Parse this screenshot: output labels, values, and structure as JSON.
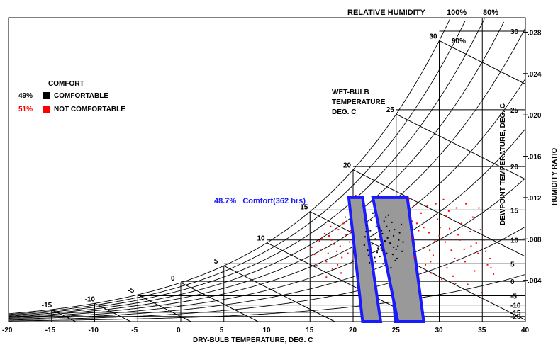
{
  "chart_data": {
    "type": "scatter",
    "chart_kind": "psychrometric",
    "header": {
      "title": "RELATIVE HUMIDITY",
      "rh_labels": [
        "100%",
        "80%"
      ],
      "rh_90_label": "90%"
    },
    "xlabel": "DRY-BULB TEMPERATURE, DEG. C",
    "xlim": [
      -20,
      40
    ],
    "x_ticks": [
      -20,
      -15,
      -10,
      -5,
      0,
      5,
      10,
      15,
      20,
      25,
      30,
      35,
      40
    ],
    "ylabel_right": "HUMIDITY RATIO",
    "ylim": [
      0,
      0.0294
    ],
    "humidity_ratio_ticks": [
      ".004",
      ".008",
      ".012",
      ".016",
      ".020",
      ".024",
      ".028"
    ],
    "dewpoint_label": "DEWPOINT TEMPERATURE, DEG. C",
    "dewpoint_ticks": [
      {
        "label": "30",
        "w": 0.0281
      },
      {
        "label": "25",
        "w": 0.0205
      },
      {
        "label": "20",
        "w": 0.015
      },
      {
        "label": "15",
        "w": 0.0108
      },
      {
        "label": "10",
        "w": 0.0079
      },
      {
        "label": "5",
        "w": 0.0056
      },
      {
        "label": "0",
        "w": 0.0039
      },
      {
        "label": "-5",
        "w": 0.0025
      },
      {
        "label": "-10",
        "w": 0.0016
      },
      {
        "label": "-15",
        "w": 0.0009
      },
      {
        "label": "-20",
        "w": 0.0005
      }
    ],
    "wet_bulb_title": [
      "WET-BULB",
      "TEMPERATURE",
      "DEG. C"
    ],
    "wet_bulb_labels": [
      "-15",
      "-10",
      "-5",
      "0",
      "5",
      "10",
      "15",
      "20",
      "25",
      "30"
    ],
    "rh_curves": [
      1.0,
      0.9,
      0.8,
      0.7,
      0.6,
      0.5,
      0.4,
      0.3,
      0.2,
      0.1
    ],
    "legend": {
      "title": "COMFORT",
      "placement": "top-left",
      "entries": [
        {
          "pct": "49%",
          "label": "COMFORTABLE",
          "color": "#000000"
        },
        {
          "pct": "51%",
          "label": "NOT COMFORTABLE",
          "color": "#ff0000"
        }
      ]
    },
    "comfort_annotation": "48.7%   Comfort(362 hrs)",
    "comfort_zones": [
      [
        [
          19.5,
          0.012
        ],
        [
          21.1,
          0.012
        ],
        [
          23.2,
          0
        ],
        [
          21.1,
          0
        ]
      ],
      [
        [
          23.8,
          0.012
        ],
        [
          25.0,
          0.012
        ],
        [
          25.9,
          0
        ],
        [
          24.9,
          0
        ]
      ],
      [
        [
          22.3,
          0.012
        ],
        [
          26.3,
          0.012
        ],
        [
          28.2,
          0
        ],
        [
          25.2,
          0
        ]
      ]
    ],
    "comfort_zone_fill": "#999999",
    "comfort_zone_stroke": "#1a1aff",
    "series": [
      {
        "name": "COMFORTABLE",
        "color": "#000000",
        "points": [
          [
            22.1,
            0.0098
          ],
          [
            23.4,
            0.0085
          ],
          [
            24.7,
            0.0072
          ],
          [
            21.8,
            0.0064
          ],
          [
            23.0,
            0.0091
          ],
          [
            25.3,
            0.0079
          ],
          [
            22.6,
            0.0058
          ],
          [
            24.1,
            0.0103
          ],
          [
            21.5,
            0.0087
          ],
          [
            23.9,
            0.0066
          ],
          [
            25.6,
            0.0094
          ],
          [
            22.9,
            0.0071
          ],
          [
            24.4,
            0.0052
          ],
          [
            21.9,
            0.0079
          ],
          [
            23.6,
            0.0097
          ],
          [
            25.1,
            0.0061
          ],
          [
            22.4,
            0.0084
          ],
          [
            24.8,
            0.0089
          ],
          [
            23.2,
            0.0074
          ],
          [
            21.7,
            0.0069
          ],
          [
            24.0,
            0.0081
          ],
          [
            25.8,
            0.0077
          ],
          [
            22.7,
            0.0092
          ],
          [
            23.5,
            0.0056
          ],
          [
            24.6,
            0.0065
          ],
          [
            22.2,
            0.0075
          ],
          [
            25.4,
            0.0086
          ],
          [
            23.8,
            0.0101
          ],
          [
            21.4,
            0.0082
          ],
          [
            24.9,
            0.0059
          ],
          [
            22.8,
            0.0067
          ],
          [
            23.3,
            0.0088
          ],
          [
            25.0,
            0.007
          ],
          [
            21.6,
            0.0093
          ],
          [
            24.3,
            0.0076
          ],
          [
            22.5,
            0.0062
          ],
          [
            23.7,
            0.0078
          ],
          [
            25.7,
            0.0068
          ],
          [
            22.0,
            0.0088
          ],
          [
            24.5,
            0.0096
          ],
          [
            23.1,
            0.0063
          ],
          [
            21.3,
            0.0074
          ],
          [
            24.2,
            0.0088
          ],
          [
            22.3,
            0.0105
          ],
          [
            25.2,
            0.0073
          ],
          [
            23.4,
            0.0069
          ],
          [
            24.7,
            0.0083
          ],
          [
            22.6,
            0.008
          ],
          [
            23.9,
            0.0092
          ],
          [
            21.9,
            0.0057
          ]
        ]
      },
      {
        "name": "NOT COMFORTABLE",
        "color": "#ff0000",
        "points": [
          [
            15.2,
            0.0072
          ],
          [
            16.4,
            0.0081
          ],
          [
            17.1,
            0.0066
          ],
          [
            18.3,
            0.0089
          ],
          [
            16.9,
            0.0058
          ],
          [
            17.8,
            0.0075
          ],
          [
            18.7,
            0.0062
          ],
          [
            19.2,
            0.0084
          ],
          [
            15.8,
            0.0054
          ],
          [
            17.4,
            0.0092
          ],
          [
            18.1,
            0.0068
          ],
          [
            19.6,
            0.0077
          ],
          [
            16.2,
            0.0069
          ],
          [
            17.6,
            0.0051
          ],
          [
            18.9,
            0.0095
          ],
          [
            19.9,
            0.0059
          ],
          [
            16.7,
            0.0085
          ],
          [
            17.9,
            0.0063
          ],
          [
            18.5,
            0.0073
          ],
          [
            19.4,
            0.0066
          ],
          [
            16.1,
            0.0078
          ],
          [
            18.2,
            0.0055
          ],
          [
            17.2,
            0.0083
          ],
          [
            19.7,
            0.0088
          ],
          [
            15.5,
            0.0065
          ],
          [
            20.3,
            0.0122
          ],
          [
            16.9,
            0.0043
          ],
          [
            18.6,
            0.0047
          ],
          [
            19.1,
            0.0101
          ],
          [
            17.5,
            0.0079
          ],
          [
            26.8,
            0.0081
          ],
          [
            27.4,
            0.0095
          ],
          [
            28.1,
            0.0072
          ],
          [
            28.8,
            0.0086
          ],
          [
            29.3,
            0.0064
          ],
          [
            30.1,
            0.0091
          ],
          [
            30.7,
            0.0077
          ],
          [
            31.4,
            0.0069
          ],
          [
            32.2,
            0.0084
          ],
          [
            33.0,
            0.0058
          ],
          [
            33.7,
            0.0073
          ],
          [
            34.5,
            0.0066
          ],
          [
            35.2,
            0.0079
          ],
          [
            27.9,
            0.0105
          ],
          [
            28.6,
            0.0112
          ],
          [
            29.8,
            0.0099
          ],
          [
            30.5,
            0.0118
          ],
          [
            31.1,
            0.0107
          ],
          [
            32.6,
            0.0095
          ],
          [
            33.9,
            0.0101
          ],
          [
            34.8,
            0.0089
          ],
          [
            35.9,
            0.0061
          ],
          [
            27.1,
            0.0062
          ],
          [
            28.4,
            0.0055
          ],
          [
            29.5,
            0.0078
          ],
          [
            30.9,
            0.0052
          ],
          [
            31.8,
            0.0061
          ],
          [
            32.9,
            0.007
          ],
          [
            34.1,
            0.0049
          ],
          [
            35.6,
            0.0055
          ],
          [
            36.3,
            0.0046
          ],
          [
            29.1,
            0.0047
          ],
          [
            30.3,
            0.0041
          ],
          [
            31.6,
            0.0044
          ],
          [
            33.3,
            0.0036
          ],
          [
            34.9,
            0.0028
          ],
          [
            27.6,
            0.0088
          ],
          [
            28.9,
            0.0069
          ],
          [
            30.0,
            0.0083
          ],
          [
            31.2,
            0.009
          ],
          [
            32.4,
            0.0079
          ],
          [
            33.6,
            0.0087
          ],
          [
            34.3,
            0.0076
          ],
          [
            35.4,
            0.0068
          ],
          [
            26.9,
            0.0097
          ],
          [
            28.2,
            0.0091
          ],
          [
            29.6,
            0.0114
          ],
          [
            30.8,
            0.0102
          ],
          [
            32.0,
            0.011
          ],
          [
            33.1,
            0.0114
          ],
          [
            34.6,
            0.011
          ],
          [
            26.5,
            0.0119
          ],
          [
            27.3,
            0.0113
          ],
          [
            29.0,
            0.0058
          ],
          [
            31.9,
            0.0037
          ],
          [
            36.0,
            0.0052
          ]
        ]
      }
    ]
  }
}
